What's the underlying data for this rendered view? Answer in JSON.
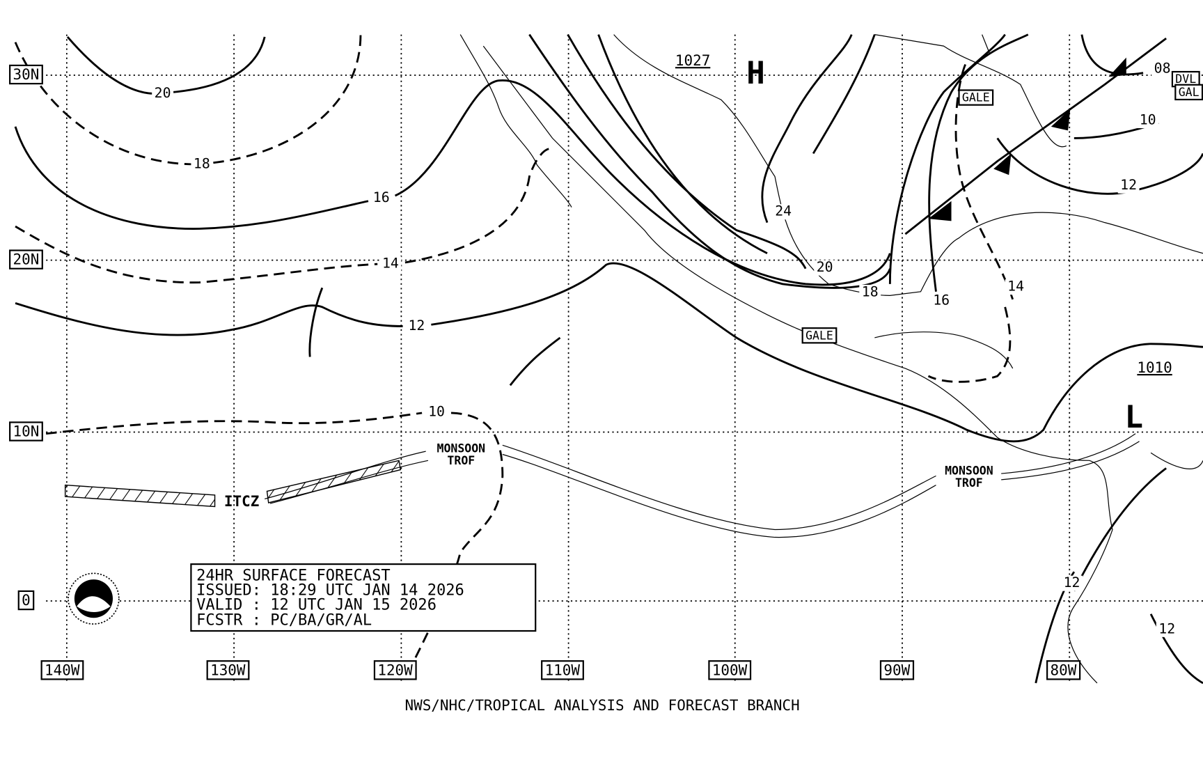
{
  "latitudes": [
    "30N",
    "20N",
    "10N",
    "0"
  ],
  "longitudes": [
    "140W",
    "130W",
    "120W",
    "110W",
    "100W",
    "90W",
    "80W"
  ],
  "isobar_labels": [
    "20",
    "18",
    "16",
    "14",
    "12",
    "10",
    "24",
    "20",
    "18",
    "16",
    "14",
    "08",
    "10",
    "12",
    "12",
    "12"
  ],
  "pressure_centers": [
    {
      "symbol": "H",
      "value": "1027"
    },
    {
      "symbol": "L",
      "value": "1010"
    }
  ],
  "warnings": [
    "GALE",
    "GALE",
    "DVL",
    "GAL"
  ],
  "features": [
    "MONSOON",
    "TROF",
    "MONSOON",
    "TROF",
    "ITCZ"
  ],
  "forecast_box": [
    "24HR SURFACE FORECAST",
    "ISSUED: 18:29 UTC JAN 14 2026",
    "VALID : 12 UTC JAN 15 2026",
    "FCSTR : PC/BA/GR/AL"
  ],
  "footer": "NWS/NHC/TROPICAL ANALYSIS AND FORECAST BRANCH"
}
